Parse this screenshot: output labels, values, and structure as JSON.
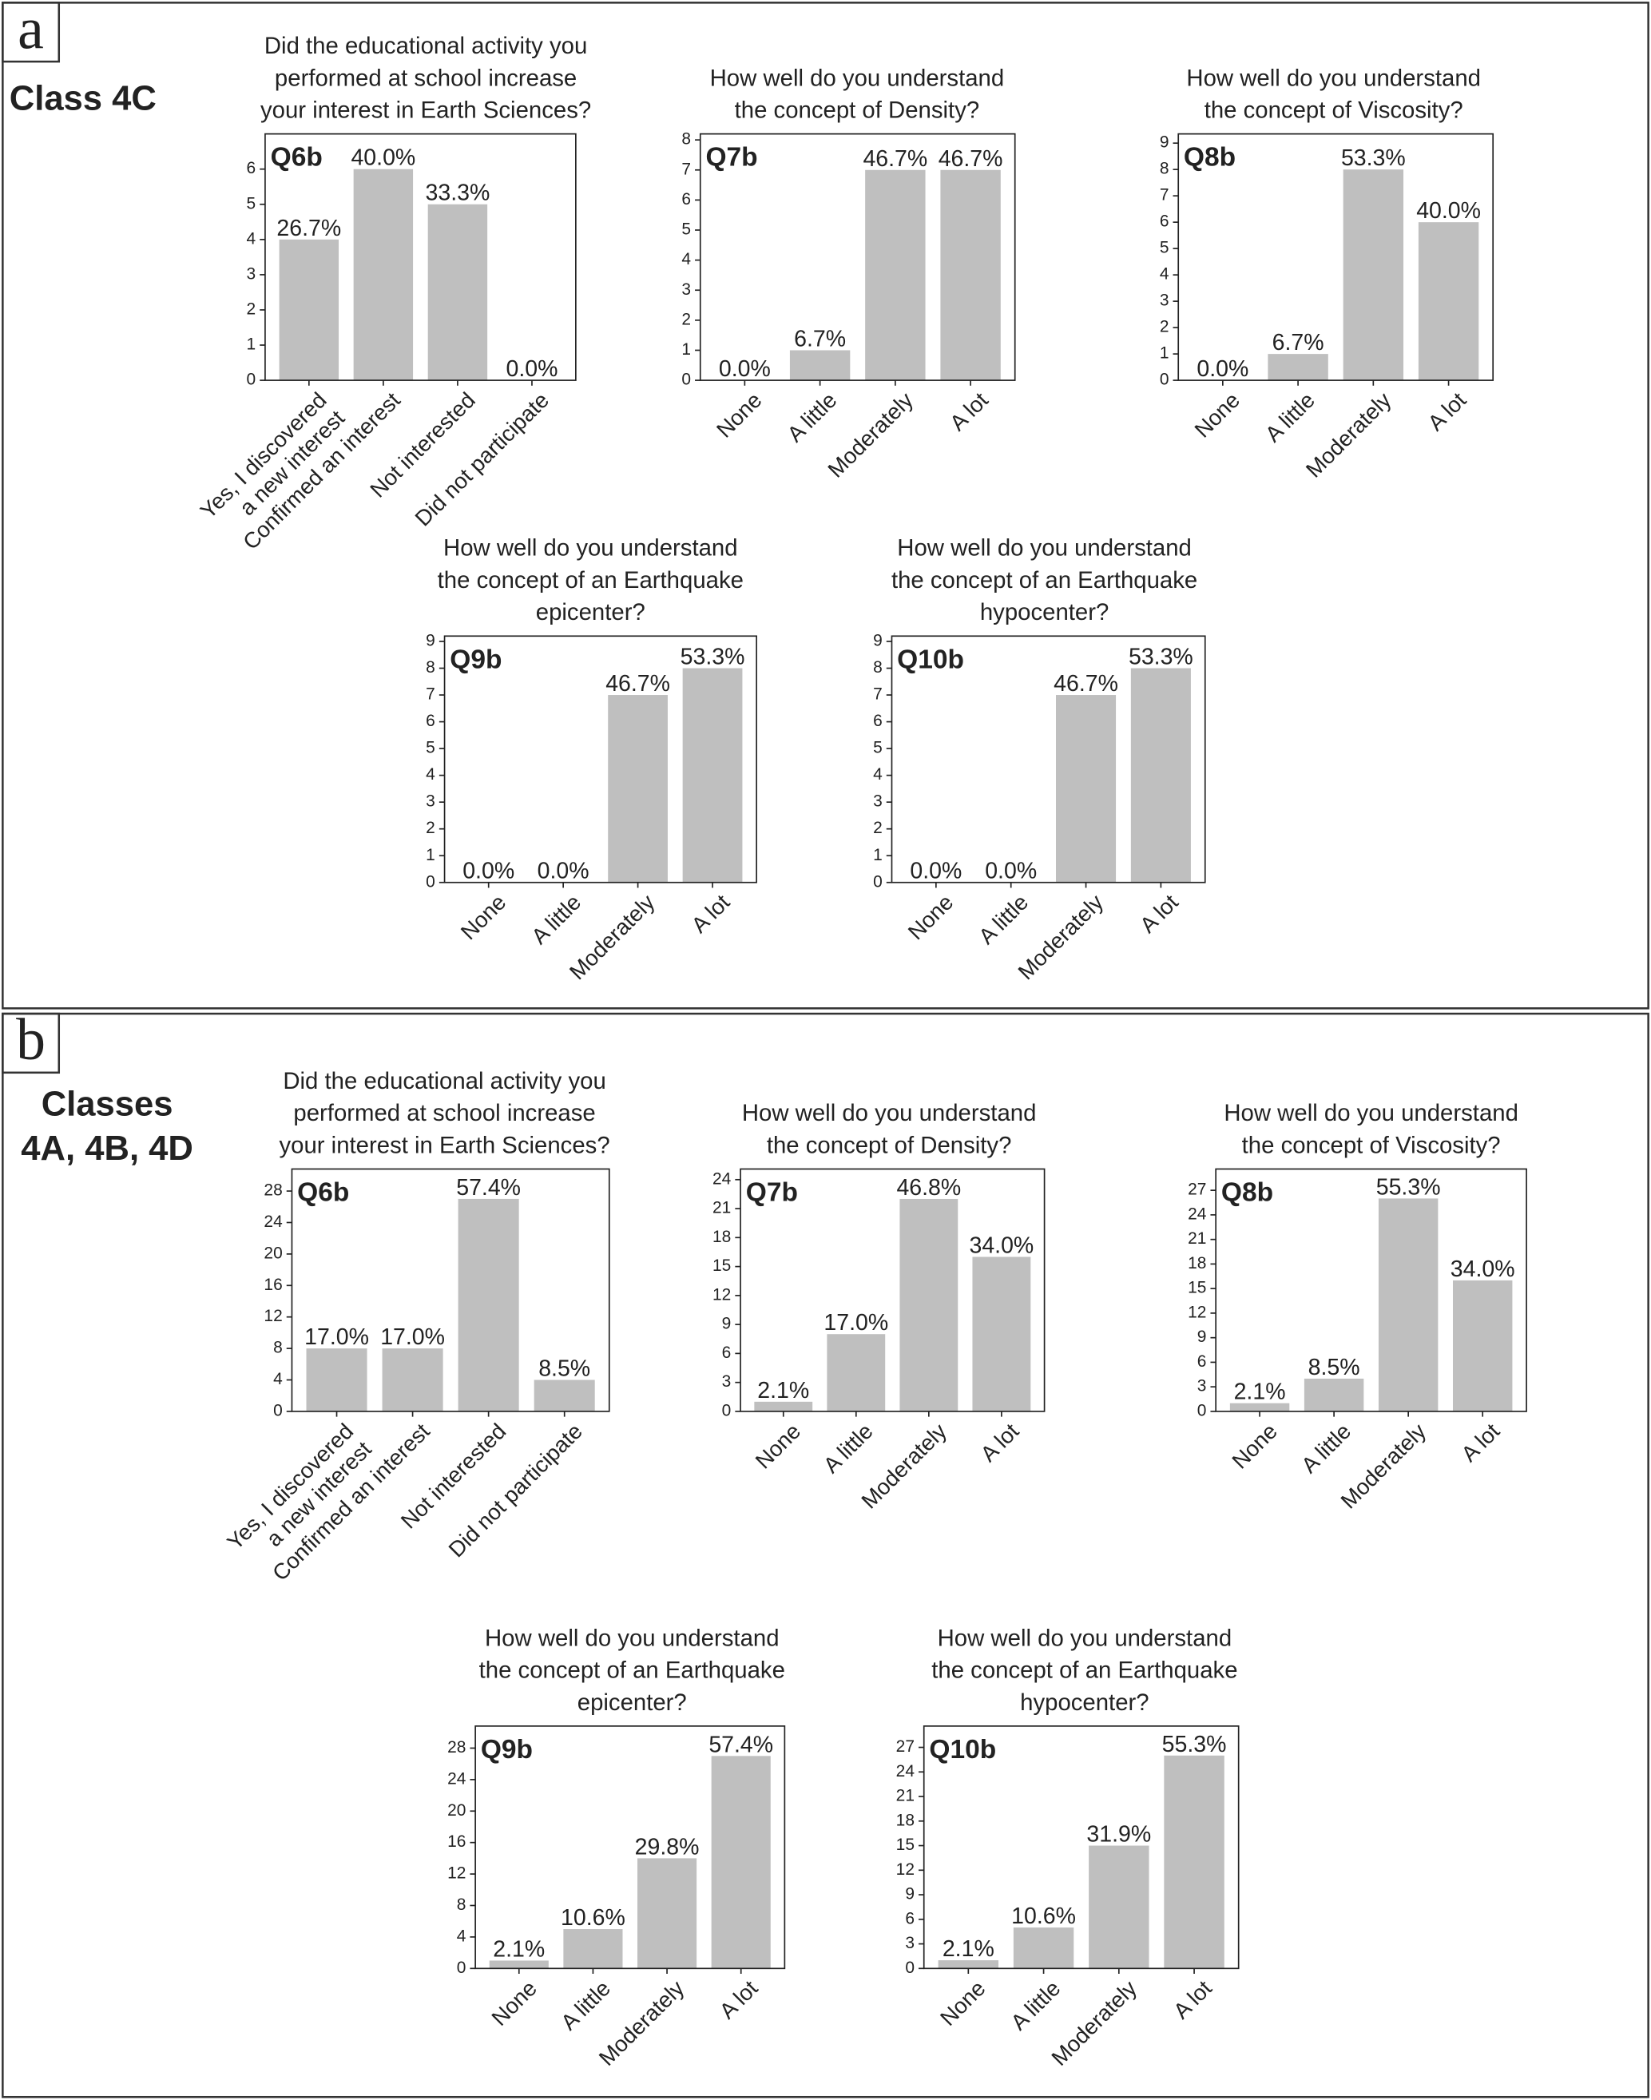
{
  "panels": [
    {
      "letter": "a",
      "label": "Class 4C"
    },
    {
      "letter": "b",
      "label": "Classes\n4A, 4B, 4D"
    }
  ],
  "chart_data": [
    {
      "type": "bar",
      "title": "Did the educational activity you\nperformed at school increase\nyour interest in Earth Sciences?",
      "panel_label": "Q6b",
      "categories": [
        "Yes, I discovered\na new interest",
        "Confirmed an interest",
        "Not interested",
        "Did not participate"
      ],
      "values": [
        4,
        6,
        5,
        0
      ],
      "bar_labels": [
        "26.7%",
        "40.0%",
        "33.3%",
        "0.0%"
      ],
      "color": "#bfbfbf",
      "ylim": [
        0,
        7
      ],
      "yticks": [
        0,
        1,
        2,
        3,
        4,
        5,
        6
      ]
    },
    {
      "type": "bar",
      "title": "How well do you understand\nthe concept of Density?",
      "panel_label": "Q7b",
      "categories": [
        "None",
        "A little",
        "Moderately",
        "A lot"
      ],
      "values": [
        0,
        1,
        7,
        7
      ],
      "bar_labels": [
        "0.0%",
        "6.7%",
        "46.7%",
        "46.7%"
      ],
      "color": "#bfbfbf",
      "ylim": [
        0,
        8.2
      ],
      "yticks": [
        0,
        1,
        2,
        3,
        4,
        5,
        6,
        7,
        8
      ]
    },
    {
      "type": "bar",
      "title": "How well do you understand\nthe concept of Viscosity?",
      "panel_label": "Q8b",
      "categories": [
        "None",
        "A little",
        "Moderately",
        "A lot"
      ],
      "values": [
        0,
        1,
        8,
        6
      ],
      "bar_labels": [
        "0.0%",
        "6.7%",
        "53.3%",
        "40.0%"
      ],
      "color": "#bfbfbf",
      "ylim": [
        0,
        9.35
      ],
      "yticks": [
        0,
        1,
        2,
        3,
        4,
        5,
        6,
        7,
        8,
        9
      ]
    },
    {
      "type": "bar",
      "title": "How well do you understand\nthe concept of an Earthquake\nepicenter?",
      "panel_label": "Q9b",
      "categories": [
        "None",
        "A little",
        "Moderately",
        "A lot"
      ],
      "values": [
        0,
        0,
        7,
        8
      ],
      "bar_labels": [
        "0.0%",
        "0.0%",
        "46.7%",
        "53.3%"
      ],
      "color": "#bfbfbf",
      "ylim": [
        0,
        9.2
      ],
      "yticks": [
        0,
        1,
        2,
        3,
        4,
        5,
        6,
        7,
        8,
        9
      ]
    },
    {
      "type": "bar",
      "title": "How well do you understand\nthe concept of an Earthquake\nhypocenter?",
      "panel_label": "Q10b",
      "categories": [
        "None",
        "A little",
        "Moderately",
        "A lot"
      ],
      "values": [
        0,
        0,
        7,
        8
      ],
      "bar_labels": [
        "0.0%",
        "0.0%",
        "46.7%",
        "53.3%"
      ],
      "color": "#bfbfbf",
      "ylim": [
        0,
        9.2
      ],
      "yticks": [
        0,
        1,
        2,
        3,
        4,
        5,
        6,
        7,
        8,
        9
      ]
    },
    {
      "type": "bar",
      "title": "Did the educational activity you\nperformed at school increase\nyour interest in Earth Sciences?",
      "panel_label": "Q6b",
      "categories": [
        "Yes, I discovered\na new interest",
        "Confirmed an interest",
        "Not interested",
        "Did not participate"
      ],
      "values": [
        8,
        8,
        27,
        4
      ],
      "bar_labels": [
        "17.0%",
        "17.0%",
        "57.4%",
        "8.5%"
      ],
      "color": "#bfbfbf",
      "ylim": [
        0,
        30.8
      ],
      "yticks": [
        0,
        4,
        8,
        12,
        16,
        20,
        24,
        28
      ]
    },
    {
      "type": "bar",
      "title": "How well do you understand\nthe concept of Density?",
      "panel_label": "Q7b",
      "categories": [
        "None",
        "A little",
        "Moderately",
        "A lot"
      ],
      "values": [
        1,
        8,
        22,
        16
      ],
      "bar_labels": [
        "2.1%",
        "17.0%",
        "46.8%",
        "34.0%"
      ],
      "color": "#bfbfbf",
      "ylim": [
        0,
        25.1
      ],
      "yticks": [
        0,
        3,
        6,
        9,
        12,
        15,
        18,
        21,
        24
      ]
    },
    {
      "type": "bar",
      "title": "How well do you understand\nthe concept of Viscosity?",
      "panel_label": "Q8b",
      "categories": [
        "None",
        "A little",
        "Moderately",
        "A lot"
      ],
      "values": [
        1,
        4,
        26,
        16
      ],
      "bar_labels": [
        "2.1%",
        "8.5%",
        "55.3%",
        "34.0%"
      ],
      "color": "#bfbfbf",
      "ylim": [
        0,
        29.6
      ],
      "yticks": [
        0,
        3,
        6,
        9,
        12,
        15,
        18,
        21,
        24,
        27
      ]
    },
    {
      "type": "bar",
      "title": "How well do you understand\nthe concept of an Earthquake\nepicenter?",
      "panel_label": "Q9b",
      "categories": [
        "None",
        "A little",
        "Moderately",
        "A lot"
      ],
      "values": [
        1,
        5,
        14,
        27
      ],
      "bar_labels": [
        "2.1%",
        "10.6%",
        "29.8%",
        "57.4%"
      ],
      "color": "#bfbfbf",
      "ylim": [
        0,
        30.8
      ],
      "yticks": [
        0,
        4,
        8,
        12,
        16,
        20,
        24,
        28
      ]
    },
    {
      "type": "bar",
      "title": "How well do you understand\nthe concept of an Earthquake\nhypocenter?",
      "panel_label": "Q10b",
      "categories": [
        "None",
        "A little",
        "Moderately",
        "A lot"
      ],
      "values": [
        1,
        5,
        15,
        26
      ],
      "bar_labels": [
        "2.1%",
        "10.6%",
        "31.9%",
        "55.3%"
      ],
      "color": "#bfbfbf",
      "ylim": [
        0,
        29.6
      ],
      "yticks": [
        0,
        3,
        6,
        9,
        12,
        15,
        18,
        21,
        24,
        27
      ]
    }
  ]
}
